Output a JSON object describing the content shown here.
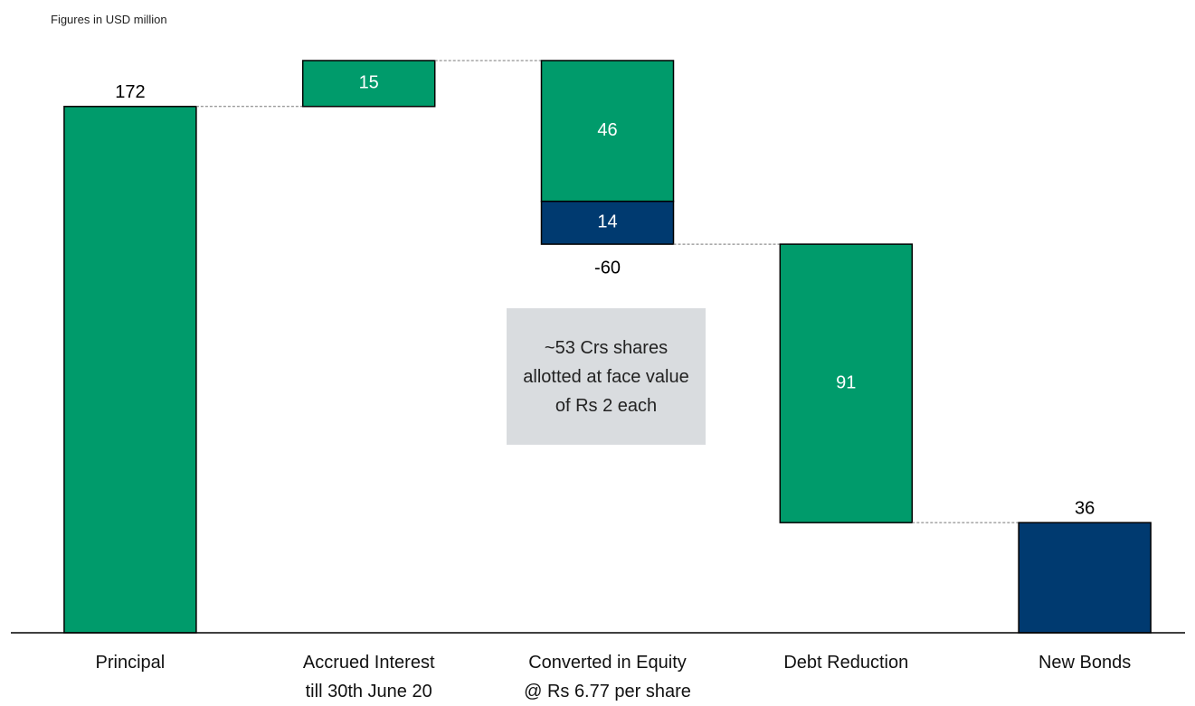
{
  "chart_data": {
    "type": "waterfall",
    "subtitle": "Figures in USD million",
    "categories": [
      "Principal",
      "Accrued Interest\ntill 30th June 20",
      "Converted in Equity\n@ Rs 6.77 per share",
      "Debt Reduction",
      "New Bonds"
    ],
    "measure": [
      "absolute",
      "relative",
      "relative",
      "relative",
      "absolute"
    ],
    "series": [
      {
        "color": "#009b6b",
        "values": [
          172,
          15,
          -46,
          -91,
          null
        ],
        "value_labels": [
          "172",
          "15",
          "46",
          "91",
          null
        ]
      },
      {
        "color": "#003a70",
        "values": [
          null,
          null,
          -14,
          null,
          36
        ],
        "value_labels": [
          null,
          null,
          "14",
          null,
          "36"
        ]
      }
    ],
    "net_labels": [
      null,
      null,
      "-60",
      null,
      null
    ],
    "annotation": "~53 Crs shares allotted at face value of Rs 2 each",
    "ylim": [
      0,
      200
    ]
  }
}
